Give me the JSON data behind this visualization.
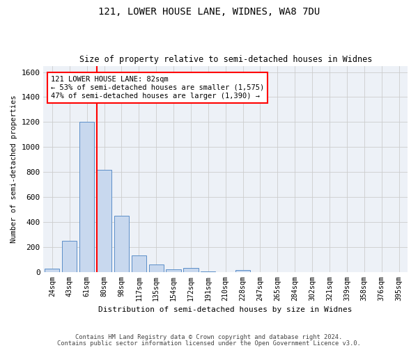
{
  "title": "121, LOWER HOUSE LANE, WIDNES, WA8 7DU",
  "subtitle": "Size of property relative to semi-detached houses in Widnes",
  "xlabel": "Distribution of semi-detached houses by size in Widnes",
  "ylabel": "Number of semi-detached properties",
  "footer_line1": "Contains HM Land Registry data © Crown copyright and database right 2024.",
  "footer_line2": "Contains public sector information licensed under the Open Government Licence v3.0.",
  "bar_labels": [
    "24sqm",
    "43sqm",
    "61sqm",
    "80sqm",
    "98sqm",
    "117sqm",
    "135sqm",
    "154sqm",
    "172sqm",
    "191sqm",
    "210sqm",
    "228sqm",
    "247sqm",
    "265sqm",
    "284sqm",
    "302sqm",
    "321sqm",
    "339sqm",
    "358sqm",
    "376sqm",
    "395sqm"
  ],
  "bar_values": [
    25,
    250,
    1200,
    820,
    450,
    130,
    60,
    20,
    30,
    5,
    0,
    15,
    0,
    0,
    0,
    0,
    0,
    0,
    0,
    0,
    0
  ],
  "bar_color": "#c8d8ee",
  "bar_edge_color": "#5b8ec8",
  "annotation_text": "121 LOWER HOUSE LANE: 82sqm\n← 53% of semi-detached houses are smaller (1,575)\n47% of semi-detached houses are larger (1,390) →",
  "annotation_box_color": "white",
  "annotation_box_edge_color": "red",
  "vline_color": "red",
  "vline_x": 2.575,
  "ylim": [
    0,
    1650
  ],
  "yticks": [
    0,
    200,
    400,
    600,
    800,
    1000,
    1200,
    1400,
    1600
  ],
  "grid_color": "#cccccc",
  "bg_color": "#edf1f7"
}
